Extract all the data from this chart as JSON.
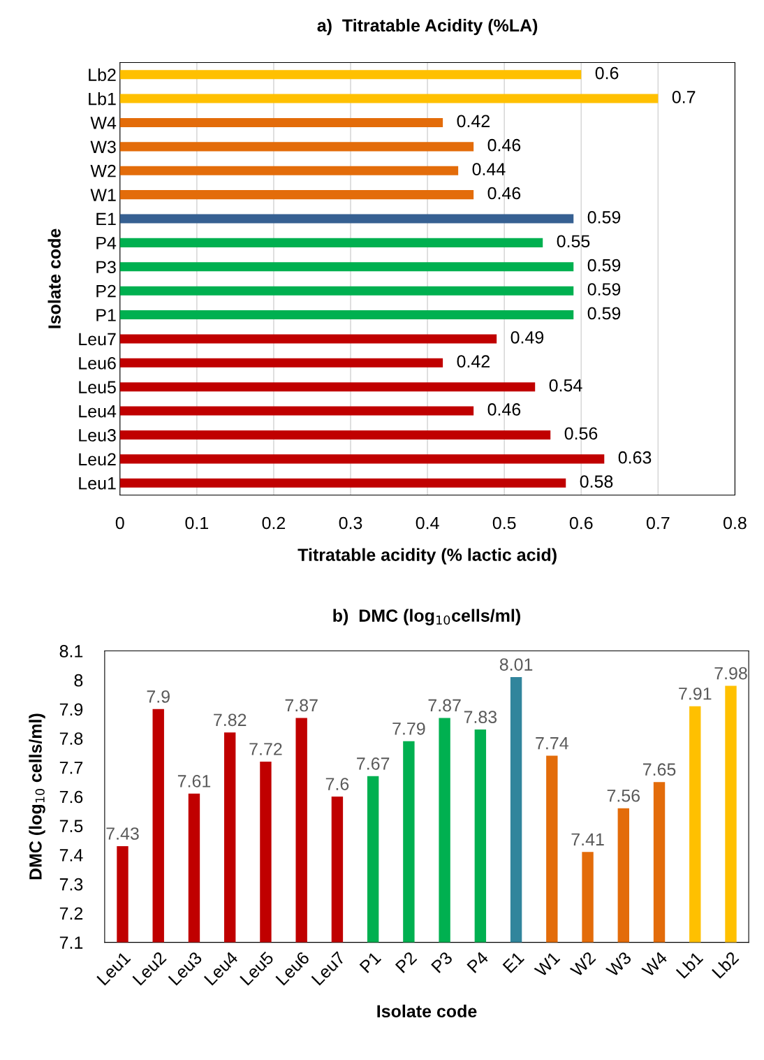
{
  "chart_data": [
    {
      "type": "bar",
      "orientation": "horizontal",
      "title": "a)  Titratable Acidity (%LA)",
      "xlabel": "Titratable acidity (% lactic acid)",
      "ylabel": "Isolate code",
      "categories": [
        "Lb2",
        "Lb1",
        "W4",
        "W3",
        "W2",
        "W1",
        "E1",
        "P4",
        "P3",
        "P2",
        "P1",
        "Leu7",
        "Leu6",
        "Leu5",
        "Leu4",
        "Leu3",
        "Leu2",
        "Leu1"
      ],
      "values": [
        0.6,
        0.7,
        0.42,
        0.46,
        0.44,
        0.46,
        0.59,
        0.55,
        0.59,
        0.59,
        0.59,
        0.49,
        0.42,
        0.54,
        0.46,
        0.56,
        0.63,
        0.58
      ],
      "colors": [
        "#ffc000",
        "#ffc000",
        "#e36c0a",
        "#e36c0a",
        "#e36c0a",
        "#e36c0a",
        "#366092",
        "#00b050",
        "#00b050",
        "#00b050",
        "#00b050",
        "#c00000",
        "#c00000",
        "#c00000",
        "#c00000",
        "#c00000",
        "#c00000",
        "#c00000"
      ],
      "xlim": [
        0,
        0.8
      ],
      "xticks": [
        0,
        0.1,
        0.2,
        0.3,
        0.4,
        0.5,
        0.6,
        0.7,
        0.8
      ],
      "grid": "x",
      "data_labels": true
    },
    {
      "type": "bar",
      "title": "b)  DMC (log$_{10}$cells/ml)",
      "xlabel": "Isolate code",
      "ylabel": "DMC (log$_{10}$ cells/ml)",
      "categories": [
        "Leu1",
        "Leu2",
        "Leu3",
        "Leu4",
        "Leu5",
        "Leu6",
        "Leu7",
        "P1",
        "P2",
        "P3",
        "P4",
        "E1",
        "W1",
        "W2",
        "W3",
        "W4",
        "Lb1",
        "Lb2"
      ],
      "values": [
        7.43,
        7.9,
        7.61,
        7.82,
        7.72,
        7.87,
        7.6,
        7.67,
        7.79,
        7.87,
        7.83,
        8.01,
        7.74,
        7.41,
        7.56,
        7.65,
        7.91,
        7.98
      ],
      "colors": [
        "#c00000",
        "#c00000",
        "#c00000",
        "#c00000",
        "#c00000",
        "#c00000",
        "#c00000",
        "#00b050",
        "#00b050",
        "#00b050",
        "#00b050",
        "#31859c",
        "#e36c0a",
        "#e36c0a",
        "#e36c0a",
        "#e36c0a",
        "#ffc000",
        "#ffc000"
      ],
      "ylim": [
        7.1,
        8.1
      ],
      "yticks": [
        7.1,
        7.2,
        7.3,
        7.4,
        7.5,
        7.6,
        7.7,
        7.8,
        7.9,
        8,
        8.1
      ],
      "grid": false,
      "data_labels": true
    }
  ]
}
